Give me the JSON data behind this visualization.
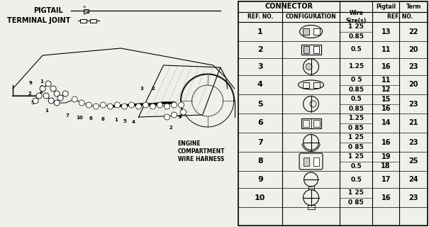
{
  "bg_color": "#f0f0eb",
  "table_data": {
    "rows": [
      {
        "ref": "1",
        "wire1": "1 25",
        "wire2": "0.85",
        "pigtail1": "13",
        "pigtail2": "",
        "term": "22",
        "shape": "oval_2pin"
      },
      {
        "ref": "2",
        "wire1": "0.5",
        "wire2": "",
        "pigtail1": "11",
        "pigtail2": "",
        "term": "20",
        "shape": "rect_2pin"
      },
      {
        "ref": "3",
        "wire1": "1.25",
        "wire2": "",
        "pigtail1": "16",
        "pigtail2": "",
        "term": "23",
        "shape": "circle_half"
      },
      {
        "ref": "4",
        "wire1": "0 5",
        "wire2": "0.85",
        "pigtail1": "11",
        "pigtail2": "12",
        "term": "20",
        "shape": "oval_flat"
      },
      {
        "ref": "5",
        "wire1": "0.5",
        "wire2": "0.85",
        "pigtail1": "15",
        "pigtail2": "16",
        "term": "23",
        "shape": "circle_half_lg"
      },
      {
        "ref": "6",
        "wire1": "1.25",
        "wire2": "0 85",
        "pigtail1": "14",
        "pigtail2": "",
        "term": "21",
        "shape": "rect_2col"
      },
      {
        "ref": "7",
        "wire1": "1 25",
        "wire2": "0 85",
        "pigtail1": "16",
        "pigtail2": "",
        "term": "23",
        "shape": "circle_4sec"
      },
      {
        "ref": "8",
        "wire1": "1 25",
        "wire2": "0.5",
        "pigtail1": "19",
        "pigtail2": "18",
        "term": "25",
        "shape": "rect_round"
      },
      {
        "ref": "9",
        "wire1": "0.5",
        "wire2": "",
        "pigtail1": "17",
        "pigtail2": "",
        "term": "24",
        "shape": "circle_tab"
      },
      {
        "ref": "10",
        "wire1": "1 25",
        "wire2": "0 85",
        "pigtail1": "16",
        "pigtail2": "",
        "term": "23",
        "shape": "circle_4sec2"
      }
    ]
  },
  "pigtail_label": "PIGTAIL",
  "terminal_joint_label": "TERMINAL JOINT",
  "engine_label": "ENGINE\nCOMPARTMENT\nWIRE HARNESS"
}
